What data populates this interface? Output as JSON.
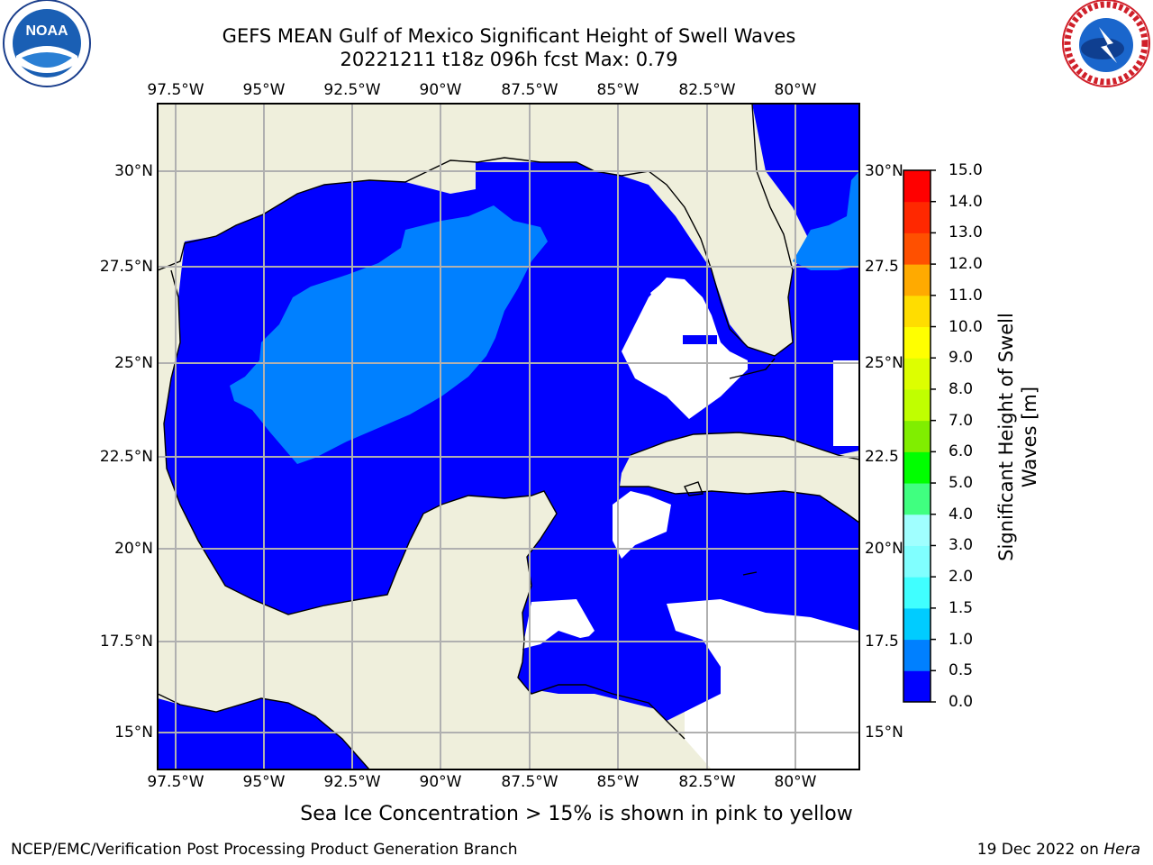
{
  "title_line1": "GEFS MEAN Gulf of Mexico Significant Height of Swell Waves",
  "title_line2": "20221211 t18z 096h fcst   Max: 0.79",
  "lon_labels": [
    "97.5°W",
    "95°W",
    "92.5°W",
    "90°W",
    "87.5°W",
    "85°W",
    "82.5°W",
    "80°W"
  ],
  "lat_labels": [
    "30°N",
    "27.5°N",
    "25°N",
    "22.5°N",
    "20°N",
    "17.5°N",
    "15°N"
  ],
  "lat_labels_right": [
    "30°N",
    "27.5",
    "25°N",
    "22.5",
    "20°N",
    "17.5",
    "15°N"
  ],
  "colorbar": {
    "title": "Significant Height of Swell Waves [m]",
    "ticks": [
      "0.0",
      "0.5",
      "1.0",
      "1.5",
      "2.0",
      "3.0",
      "4.0",
      "5.0",
      "6.0",
      "7.0",
      "8.0",
      "9.0",
      "10.0",
      "11.0",
      "12.0",
      "13.0",
      "14.0",
      "15.0"
    ],
    "colors": [
      "#0000ff",
      "#0080ff",
      "#00ccff",
      "#00ffff",
      "#40ffff",
      "#80ffff",
      "#a0ffff",
      "#40ff80",
      "#00ff00",
      "#40dd00",
      "#80ee00",
      "#c0ff00",
      "#ddff00",
      "#ffff00",
      "#ffdd00",
      "#ffaa00",
      "#ff8000",
      "#ff5000",
      "#ff2800",
      "#ff0000"
    ]
  },
  "colors": {
    "land": "#efefdc",
    "ocean_low": "#0000ff",
    "ocean_mid": "#0080ff",
    "no_data": "#ffffff",
    "grid": "#b0b0b0"
  },
  "footer_note": "Sea Ice Concentration > 15% is shown in pink to yellow",
  "footer_left": "NCEP/EMC/Verification Post Processing Product Generation Branch",
  "footer_right_prefix": "19 Dec 2022 on ",
  "footer_right_host": "Hera",
  "logos": {
    "noaa": "NOAA",
    "nws": "NATIONAL WEATHER SERVICE"
  }
}
